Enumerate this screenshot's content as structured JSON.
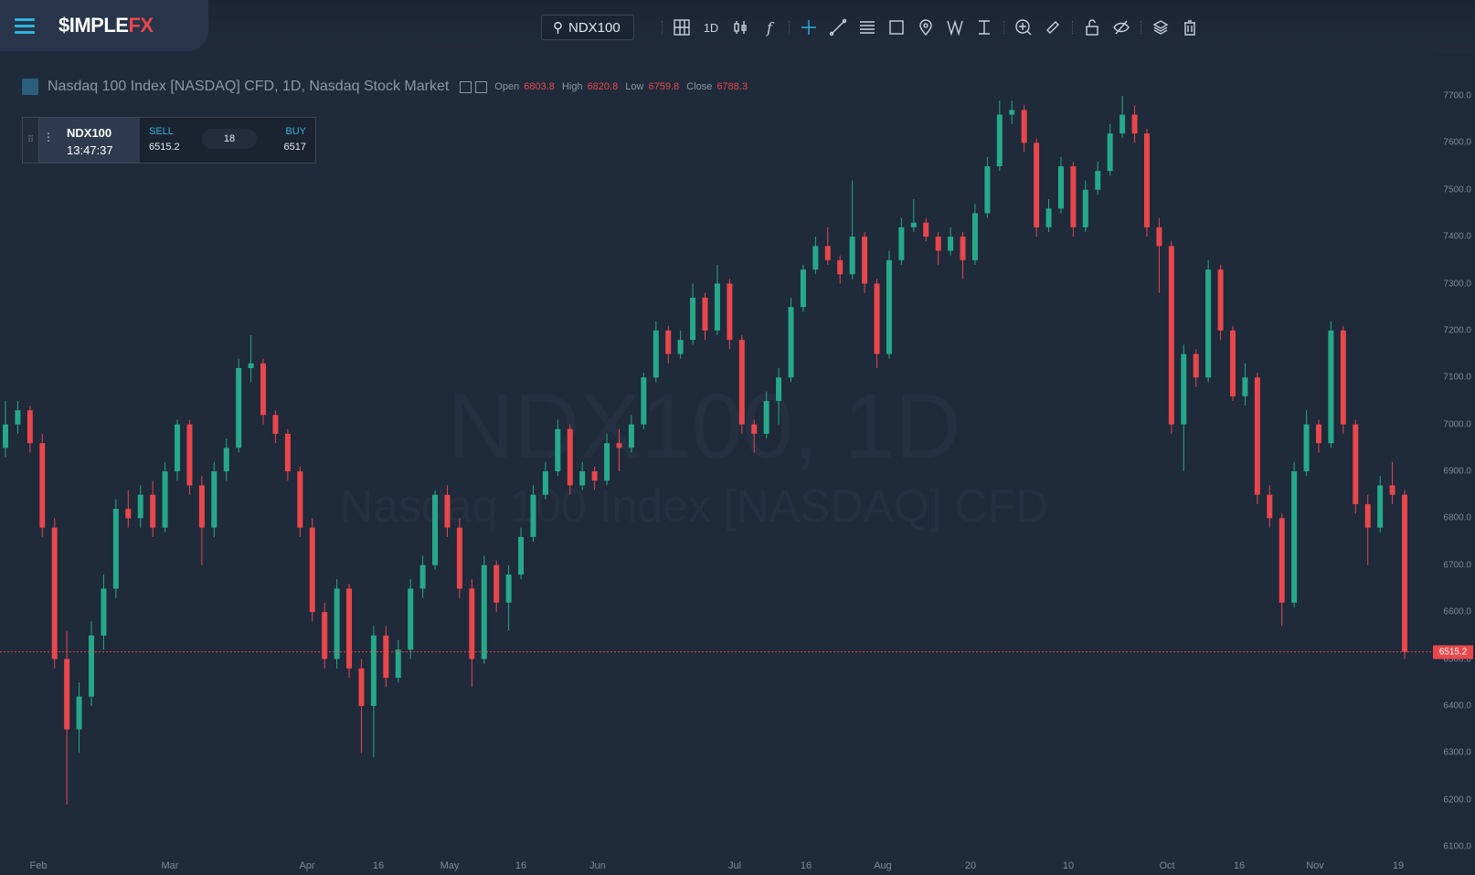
{
  "brand": {
    "logo_main": "$IMPLE",
    "logo_accent": "FX"
  },
  "toolbar": {
    "search_value": "NDX100",
    "interval": "1D",
    "icons": [
      "grid-icon",
      "candles-icon",
      "indicator-f-icon",
      "crosshair-icon",
      "trendline-icon",
      "fib-lines-icon",
      "rectangle-icon",
      "pin-icon",
      "pattern-icon",
      "measure-icon",
      "zoom-in-icon",
      "ruler-icon",
      "lock-icon",
      "hide-icon",
      "layers-icon",
      "trash-icon"
    ]
  },
  "legend": {
    "title": "Nasdaq 100 Index [NASDAQ] CFD, 1D, Nasdaq Stock Market",
    "open_label": "Open",
    "open": "6803.8",
    "high_label": "High",
    "high": "6820.8",
    "low_label": "Low",
    "low": "6759.8",
    "close_label": "Close",
    "close": "6788.3"
  },
  "trade": {
    "symbol": "NDX100",
    "time": "13:47:37",
    "sell_label": "SELL",
    "sell": "6515.2",
    "spread": "18",
    "buy_label": "BUY",
    "buy": "6517"
  },
  "watermark": {
    "line1": "NDX100, 1D",
    "line2": "Nasdaq 100 Index [NASDAQ] CFD"
  },
  "colors": {
    "up": "#26a98a",
    "down": "#e8474b",
    "background": "#1f2a3b",
    "accent": "#2fb4d8"
  },
  "chart_data": {
    "type": "candlestick",
    "y_ticks": [
      "7700.0",
      "7600.0",
      "7500.0",
      "7400.0",
      "7300.0",
      "7200.0",
      "7100.0",
      "7000.0",
      "6900.0",
      "6800.0",
      "6700.0",
      "6600.0",
      "6500.0",
      "6400.0",
      "6300.0",
      "6200.0",
      "6100.0"
    ],
    "ylim": [
      6100,
      7700
    ],
    "x_ticks": [
      "Feb",
      "Mar",
      "Apr",
      "16",
      "May",
      "16",
      "Jun",
      "Jul",
      "16",
      "Aug",
      "20",
      "10",
      "Oct",
      "16",
      "Nov",
      "19"
    ],
    "current_price": "6515.2",
    "ohlc": [
      [
        6950,
        7050,
        6930,
        7000
      ],
      [
        7000,
        7050,
        6980,
        7030
      ],
      [
        7030,
        7040,
        6940,
        6960
      ],
      [
        6960,
        6980,
        6760,
        6780
      ],
      [
        6780,
        6800,
        6480,
        6500
      ],
      [
        6500,
        6560,
        6190,
        6350
      ],
      [
        6350,
        6450,
        6300,
        6420
      ],
      [
        6420,
        6580,
        6400,
        6550
      ],
      [
        6550,
        6680,
        6520,
        6650
      ],
      [
        6650,
        6840,
        6630,
        6820
      ],
      [
        6820,
        6860,
        6780,
        6800
      ],
      [
        6800,
        6870,
        6780,
        6850
      ],
      [
        6850,
        6880,
        6760,
        6780
      ],
      [
        6780,
        6920,
        6770,
        6900
      ],
      [
        6900,
        7010,
        6880,
        7000
      ],
      [
        7000,
        7010,
        6850,
        6870
      ],
      [
        6870,
        6890,
        6700,
        6780
      ],
      [
        6780,
        6920,
        6760,
        6900
      ],
      [
        6900,
        6970,
        6880,
        6950
      ],
      [
        6950,
        7140,
        6940,
        7120
      ],
      [
        7120,
        7190,
        7090,
        7130
      ],
      [
        7130,
        7140,
        7000,
        7020
      ],
      [
        7020,
        7030,
        6960,
        6980
      ],
      [
        6980,
        6990,
        6880,
        6900
      ],
      [
        6900,
        6910,
        6760,
        6780
      ],
      [
        6780,
        6800,
        6580,
        6600
      ],
      [
        6600,
        6620,
        6480,
        6500
      ],
      [
        6500,
        6670,
        6480,
        6650
      ],
      [
        6650,
        6660,
        6460,
        6480
      ],
      [
        6480,
        6500,
        6300,
        6400
      ],
      [
        6400,
        6570,
        6290,
        6550
      ],
      [
        6550,
        6570,
        6440,
        6460
      ],
      [
        6460,
        6540,
        6450,
        6520
      ],
      [
        6520,
        6670,
        6500,
        6650
      ],
      [
        6650,
        6720,
        6630,
        6700
      ],
      [
        6700,
        6860,
        6690,
        6850
      ],
      [
        6850,
        6870,
        6760,
        6780
      ],
      [
        6780,
        6800,
        6630,
        6650
      ],
      [
        6650,
        6670,
        6440,
        6500
      ],
      [
        6500,
        6720,
        6490,
        6700
      ],
      [
        6700,
        6710,
        6600,
        6620
      ],
      [
        6620,
        6700,
        6560,
        6680
      ],
      [
        6680,
        6780,
        6670,
        6760
      ],
      [
        6760,
        6870,
        6750,
        6850
      ],
      [
        6850,
        6920,
        6840,
        6900
      ],
      [
        6900,
        7010,
        6890,
        6990
      ],
      [
        6990,
        7000,
        6850,
        6870
      ],
      [
        6870,
        6920,
        6860,
        6900
      ],
      [
        6900,
        6910,
        6860,
        6880
      ],
      [
        6880,
        6980,
        6870,
        6960
      ],
      [
        6960,
        6990,
        6900,
        6950
      ],
      [
        6950,
        7020,
        6940,
        7000
      ],
      [
        7000,
        7110,
        6990,
        7100
      ],
      [
        7100,
        7220,
        7090,
        7200
      ],
      [
        7200,
        7210,
        7130,
        7150
      ],
      [
        7150,
        7200,
        7140,
        7180
      ],
      [
        7180,
        7300,
        7170,
        7270
      ],
      [
        7270,
        7280,
        7180,
        7200
      ],
      [
        7200,
        7340,
        7190,
        7300
      ],
      [
        7300,
        7310,
        7160,
        7180
      ],
      [
        7180,
        7190,
        6980,
        7000
      ],
      [
        7000,
        7010,
        6940,
        6980
      ],
      [
        6980,
        7070,
        6970,
        7050
      ],
      [
        7050,
        7120,
        7000,
        7100
      ],
      [
        7100,
        7270,
        7090,
        7250
      ],
      [
        7250,
        7340,
        7240,
        7330
      ],
      [
        7330,
        7400,
        7320,
        7380
      ],
      [
        7380,
        7420,
        7340,
        7350
      ],
      [
        7350,
        7360,
        7300,
        7320
      ],
      [
        7320,
        7520,
        7310,
        7400
      ],
      [
        7400,
        7410,
        7280,
        7300
      ],
      [
        7300,
        7310,
        7120,
        7150
      ],
      [
        7150,
        7370,
        7140,
        7350
      ],
      [
        7350,
        7440,
        7340,
        7420
      ],
      [
        7420,
        7480,
        7410,
        7430
      ],
      [
        7430,
        7440,
        7390,
        7400
      ],
      [
        7400,
        7410,
        7340,
        7370
      ],
      [
        7370,
        7420,
        7360,
        7400
      ],
      [
        7400,
        7410,
        7310,
        7350
      ],
      [
        7350,
        7470,
        7340,
        7450
      ],
      [
        7450,
        7570,
        7440,
        7550
      ],
      [
        7550,
        7690,
        7540,
        7660
      ],
      [
        7660,
        7690,
        7640,
        7670
      ],
      [
        7670,
        7680,
        7580,
        7600
      ],
      [
        7600,
        7610,
        7400,
        7420
      ],
      [
        7420,
        7480,
        7410,
        7460
      ],
      [
        7460,
        7570,
        7450,
        7550
      ],
      [
        7550,
        7560,
        7400,
        7420
      ],
      [
        7420,
        7520,
        7410,
        7500
      ],
      [
        7500,
        7560,
        7490,
        7540
      ],
      [
        7540,
        7640,
        7530,
        7620
      ],
      [
        7620,
        7700,
        7610,
        7660
      ],
      [
        7660,
        7680,
        7600,
        7620
      ],
      [
        7620,
        7630,
        7400,
        7420
      ],
      [
        7420,
        7440,
        7280,
        7380
      ],
      [
        7380,
        7390,
        6980,
        7000
      ],
      [
        7000,
        7170,
        6900,
        7150
      ],
      [
        7150,
        7160,
        7080,
        7100
      ],
      [
        7100,
        7350,
        7090,
        7330
      ],
      [
        7330,
        7340,
        7180,
        7200
      ],
      [
        7200,
        7210,
        7050,
        7060
      ],
      [
        7060,
        7130,
        7040,
        7100
      ],
      [
        7100,
        7110,
        6830,
        6850
      ],
      [
        6850,
        6870,
        6780,
        6800
      ],
      [
        6800,
        6810,
        6570,
        6620
      ],
      [
        6620,
        6920,
        6610,
        6900
      ],
      [
        6900,
        7030,
        6890,
        7000
      ],
      [
        7000,
        7010,
        6940,
        6960
      ],
      [
        6960,
        7220,
        6950,
        7200
      ],
      [
        7200,
        7210,
        6980,
        7000
      ],
      [
        7000,
        7010,
        6810,
        6830
      ],
      [
        6830,
        6850,
        6700,
        6780
      ],
      [
        6780,
        6890,
        6770,
        6870
      ],
      [
        6870,
        6920,
        6830,
        6850
      ],
      [
        6850,
        6860,
        6500,
        6515.2
      ]
    ]
  }
}
